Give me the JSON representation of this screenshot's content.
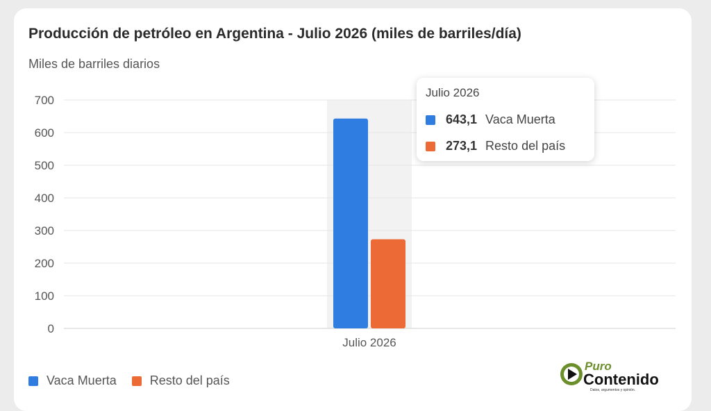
{
  "colors": {
    "vaca_muerta": "#2f7de1",
    "resto": "#ec6a36",
    "grid": "#e6e6e6",
    "highlight": "#f2f2f2"
  },
  "chart_data": {
    "type": "bar",
    "title": "Producción de petróleo en Argentina - Julio 2026 (miles de barriles/día)",
    "ylabel": "Miles de barriles diarios",
    "xlabel": "",
    "categories": [
      "Julio 2026"
    ],
    "series": [
      {
        "name": "Vaca Muerta",
        "values": [
          643.1
        ]
      },
      {
        "name": "Resto del país",
        "values": [
          273.1
        ]
      }
    ],
    "ylim": [
      0,
      700
    ],
    "yticks": [
      "0",
      "100",
      "200",
      "300",
      "400",
      "500",
      "600",
      "700"
    ],
    "grid": true,
    "legend": "bottom-left"
  },
  "tooltip": {
    "title": "Julio 2026",
    "rows": [
      {
        "value": "643,1",
        "label": "Vaca Muerta"
      },
      {
        "value": "273,1",
        "label": "Resto del país"
      }
    ]
  },
  "logo": {
    "word1": "Puro",
    "word2": "Contenido",
    "tagline": "Datos, argumentos y opinión."
  }
}
